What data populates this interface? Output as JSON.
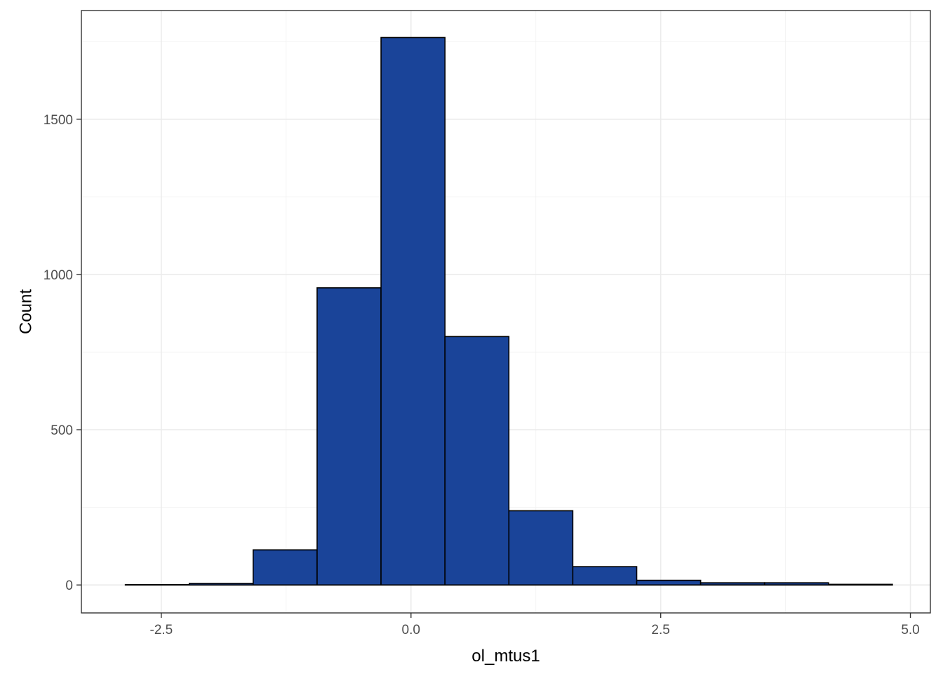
{
  "chart_data": {
    "type": "bar",
    "subtype": "histogram",
    "title": "",
    "xlabel": "ol_mtus1",
    "ylabel": "Count",
    "xlim": [
      -3.3,
      5.2
    ],
    "ylim": [
      -90,
      1850
    ],
    "x_ticks": [
      -2.5,
      0.0,
      2.5,
      5.0
    ],
    "x_tick_labels": [
      "-2.5",
      "0.0",
      "2.5",
      "5.0"
    ],
    "x_minor_ticks": [
      -1.25,
      1.25,
      3.75
    ],
    "y_ticks": [
      0,
      500,
      1000,
      1500
    ],
    "y_tick_labels": [
      "0",
      "500",
      "1000",
      "1500"
    ],
    "y_minor_ticks": [
      250,
      750,
      1250,
      1750
    ],
    "bins": [
      {
        "x0": -2.86,
        "x1": -2.22,
        "count": 1
      },
      {
        "x0": -2.22,
        "x1": -1.58,
        "count": 5
      },
      {
        "x0": -1.58,
        "x1": -0.94,
        "count": 113
      },
      {
        "x0": -0.94,
        "x1": -0.3,
        "count": 957
      },
      {
        "x0": -0.3,
        "x1": 0.34,
        "count": 1763
      },
      {
        "x0": 0.34,
        "x1": 0.98,
        "count": 800
      },
      {
        "x0": 0.98,
        "x1": 1.62,
        "count": 239
      },
      {
        "x0": 1.62,
        "x1": 2.26,
        "count": 59
      },
      {
        "x0": 2.26,
        "x1": 2.9,
        "count": 15
      },
      {
        "x0": 2.9,
        "x1": 3.54,
        "count": 7
      },
      {
        "x0": 3.54,
        "x1": 4.18,
        "count": 7
      },
      {
        "x0": 4.18,
        "x1": 4.82,
        "count": 2
      }
    ],
    "grid": true,
    "legend": "none",
    "colors": {
      "bar_fill": "#1a4499",
      "bar_outline": "#000000",
      "panel_background": "#ffffff",
      "grid_major": "#ebebeb",
      "grid_minor": "#f2f2f2",
      "panel_border": "#333333",
      "tick_text": "#4d4d4d",
      "axis_title": "#000000"
    }
  }
}
